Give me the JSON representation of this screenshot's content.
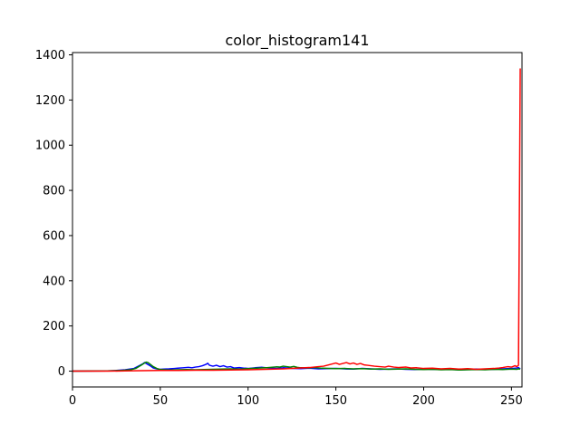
{
  "chart_data": {
    "type": "line",
    "title": "color_histogram141",
    "xlabel": "",
    "ylabel": "",
    "xlim": [
      0,
      256
    ],
    "ylim": [
      -70,
      1410
    ],
    "xticks": [
      0,
      50,
      100,
      150,
      200,
      250
    ],
    "yticks": [
      0,
      200,
      400,
      600,
      800,
      1000,
      1200,
      1400
    ],
    "grid": false,
    "legend": "none",
    "series": [
      {
        "color": "#0000ff",
        "points": [
          [
            0,
            0
          ],
          [
            20,
            1
          ],
          [
            25,
            3
          ],
          [
            30,
            6
          ],
          [
            35,
            12
          ],
          [
            38,
            24
          ],
          [
            40,
            32
          ],
          [
            41,
            38
          ],
          [
            42,
            34
          ],
          [
            44,
            25
          ],
          [
            46,
            14
          ],
          [
            48,
            10
          ],
          [
            50,
            8
          ],
          [
            52,
            9
          ],
          [
            55,
            10
          ],
          [
            58,
            12
          ],
          [
            60,
            13
          ],
          [
            63,
            15
          ],
          [
            66,
            17
          ],
          [
            68,
            15
          ],
          [
            70,
            18
          ],
          [
            72,
            20
          ],
          [
            74,
            24
          ],
          [
            76,
            30
          ],
          [
            77,
            35
          ],
          [
            78,
            26
          ],
          [
            80,
            22
          ],
          [
            82,
            26
          ],
          [
            84,
            20
          ],
          [
            86,
            24
          ],
          [
            88,
            18
          ],
          [
            90,
            20
          ],
          [
            92,
            14
          ],
          [
            95,
            16
          ],
          [
            98,
            13
          ],
          [
            100,
            12
          ],
          [
            104,
            15
          ],
          [
            108,
            17
          ],
          [
            112,
            14
          ],
          [
            116,
            12
          ],
          [
            120,
            15
          ],
          [
            125,
            12
          ],
          [
            130,
            11
          ],
          [
            135,
            13
          ],
          [
            140,
            10
          ],
          [
            145,
            11
          ],
          [
            150,
            12
          ],
          [
            155,
            10
          ],
          [
            160,
            9
          ],
          [
            165,
            12
          ],
          [
            170,
            10
          ],
          [
            175,
            8
          ],
          [
            180,
            9
          ],
          [
            185,
            10
          ],
          [
            190,
            8
          ],
          [
            195,
            7
          ],
          [
            200,
            9
          ],
          [
            205,
            8
          ],
          [
            210,
            7
          ],
          [
            215,
            8
          ],
          [
            220,
            6
          ],
          [
            225,
            7
          ],
          [
            230,
            9
          ],
          [
            235,
            7
          ],
          [
            240,
            8
          ],
          [
            245,
            10
          ],
          [
            250,
            12
          ],
          [
            253,
            14
          ],
          [
            254,
            16
          ],
          [
            255,
            10
          ]
        ]
      },
      {
        "color": "#008000",
        "points": [
          [
            0,
            0
          ],
          [
            20,
            1
          ],
          [
            28,
            3
          ],
          [
            33,
            6
          ],
          [
            36,
            12
          ],
          [
            39,
            26
          ],
          [
            41,
            36
          ],
          [
            42,
            40
          ],
          [
            43,
            38
          ],
          [
            44,
            32
          ],
          [
            46,
            20
          ],
          [
            48,
            12
          ],
          [
            50,
            7
          ],
          [
            55,
            5
          ],
          [
            60,
            6
          ],
          [
            65,
            7
          ],
          [
            70,
            6
          ],
          [
            75,
            7
          ],
          [
            80,
            8
          ],
          [
            85,
            9
          ],
          [
            90,
            10
          ],
          [
            95,
            9
          ],
          [
            100,
            11
          ],
          [
            105,
            13
          ],
          [
            110,
            15
          ],
          [
            113,
            17
          ],
          [
            116,
            19
          ],
          [
            118,
            18
          ],
          [
            120,
            22
          ],
          [
            122,
            20
          ],
          [
            124,
            18
          ],
          [
            126,
            21
          ],
          [
            128,
            17
          ],
          [
            130,
            15
          ],
          [
            134,
            14
          ],
          [
            138,
            16
          ],
          [
            142,
            13
          ],
          [
            146,
            12
          ],
          [
            150,
            11
          ],
          [
            155,
            12
          ],
          [
            160,
            10
          ],
          [
            165,
            11
          ],
          [
            170,
            9
          ],
          [
            175,
            10
          ],
          [
            180,
            8
          ],
          [
            185,
            9
          ],
          [
            190,
            10
          ],
          [
            195,
            8
          ],
          [
            200,
            7
          ],
          [
            205,
            8
          ],
          [
            210,
            6
          ],
          [
            215,
            7
          ],
          [
            220,
            5
          ],
          [
            225,
            6
          ],
          [
            230,
            7
          ],
          [
            235,
            6
          ],
          [
            240,
            8
          ],
          [
            245,
            7
          ],
          [
            250,
            9
          ],
          [
            253,
            8
          ],
          [
            254,
            10
          ],
          [
            255,
            9
          ]
        ]
      },
      {
        "color": "#ff0000",
        "points": [
          [
            0,
            0
          ],
          [
            20,
            0
          ],
          [
            30,
            1
          ],
          [
            40,
            2
          ],
          [
            50,
            3
          ],
          [
            60,
            3
          ],
          [
            70,
            4
          ],
          [
            80,
            4
          ],
          [
            90,
            5
          ],
          [
            100,
            6
          ],
          [
            105,
            7
          ],
          [
            110,
            8
          ],
          [
            115,
            9
          ],
          [
            120,
            10
          ],
          [
            125,
            12
          ],
          [
            130,
            14
          ],
          [
            135,
            16
          ],
          [
            140,
            20
          ],
          [
            143,
            22
          ],
          [
            146,
            28
          ],
          [
            148,
            32
          ],
          [
            150,
            36
          ],
          [
            152,
            30
          ],
          [
            154,
            34
          ],
          [
            156,
            38
          ],
          [
            158,
            32
          ],
          [
            160,
            36
          ],
          [
            162,
            30
          ],
          [
            164,
            34
          ],
          [
            166,
            28
          ],
          [
            168,
            26
          ],
          [
            170,
            24
          ],
          [
            172,
            22
          ],
          [
            175,
            20
          ],
          [
            178,
            18
          ],
          [
            180,
            22
          ],
          [
            183,
            18
          ],
          [
            186,
            16
          ],
          [
            190,
            18
          ],
          [
            193,
            14
          ],
          [
            196,
            15
          ],
          [
            200,
            12
          ],
          [
            205,
            13
          ],
          [
            210,
            10
          ],
          [
            215,
            12
          ],
          [
            220,
            9
          ],
          [
            225,
            11
          ],
          [
            230,
            8
          ],
          [
            235,
            10
          ],
          [
            240,
            12
          ],
          [
            243,
            14
          ],
          [
            245,
            16
          ],
          [
            248,
            20
          ],
          [
            250,
            18
          ],
          [
            252,
            24
          ],
          [
            253,
            20
          ],
          [
            254,
            26
          ],
          [
            255,
            1340
          ]
        ]
      }
    ]
  }
}
